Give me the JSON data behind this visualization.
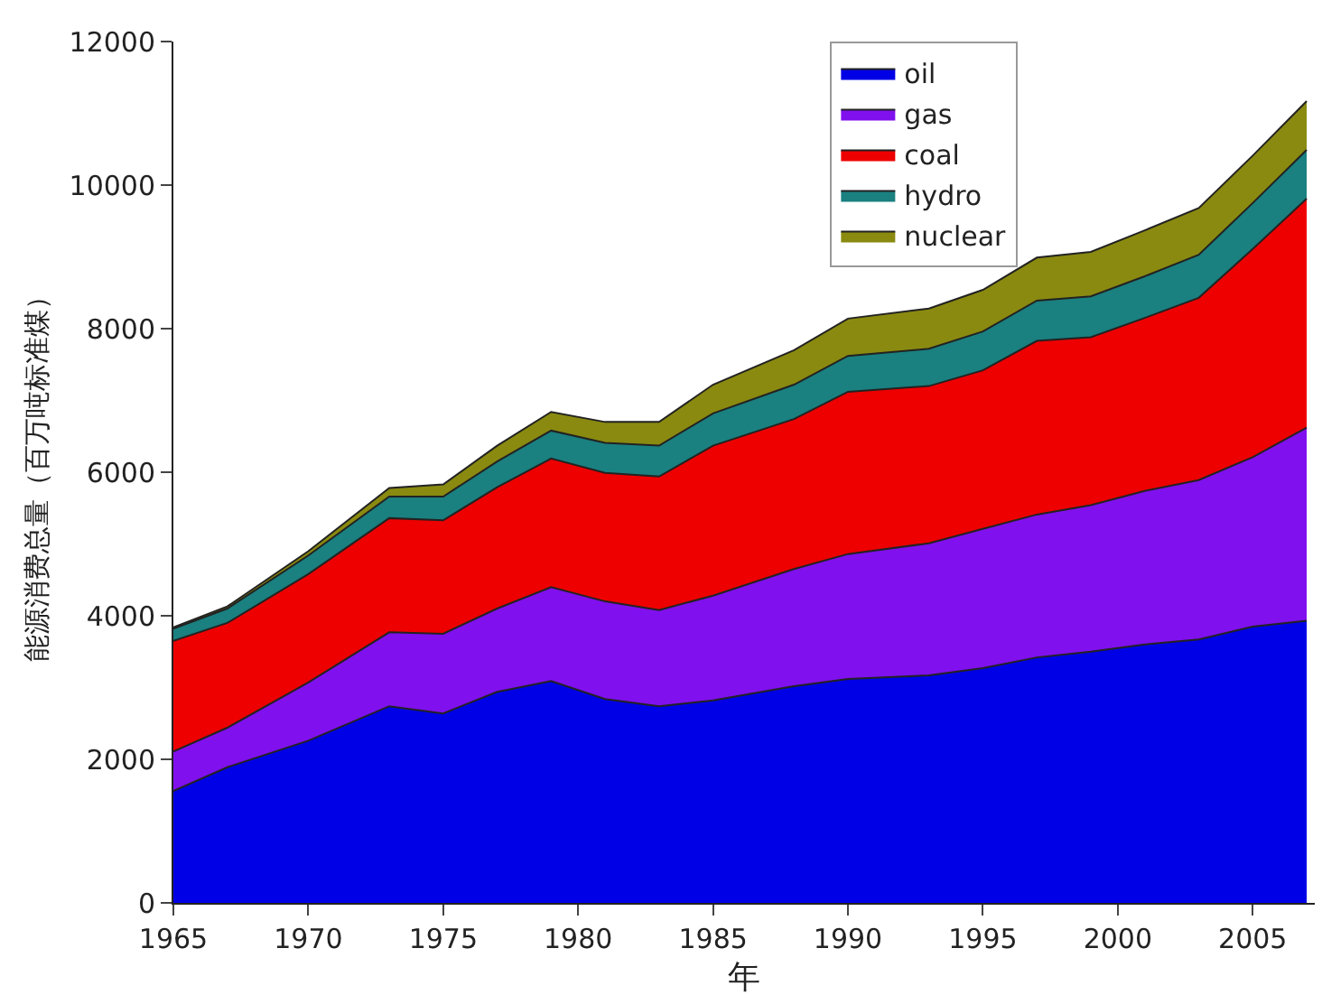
{
  "chart_data": {
    "type": "area",
    "stacked": true,
    "xlabel": "年",
    "ylabel": "能源消费总量（百万吨标准煤）",
    "x": [
      1965,
      1967,
      1970,
      1973,
      1975,
      1977,
      1979,
      1981,
      1983,
      1985,
      1988,
      1990,
      1993,
      1995,
      1997,
      1999,
      2001,
      2003,
      2005,
      2007
    ],
    "xlim": [
      1965,
      2007.3
    ],
    "xticks": [
      1965,
      1970,
      1975,
      1980,
      1985,
      1990,
      1995,
      2000,
      2005
    ],
    "ylim": [
      0,
      12000
    ],
    "yticks": [
      0,
      2000,
      4000,
      6000,
      8000,
      10000,
      12000
    ],
    "grid": false,
    "legend": "top right",
    "series": [
      {
        "name": "oil",
        "color": "#0000e6",
        "values": [
          1560,
          1890,
          2260,
          2740,
          2640,
          2940,
          3090,
          2840,
          2740,
          2820,
          3020,
          3120,
          3170,
          3270,
          3420,
          3500,
          3600,
          3670,
          3850,
          3930
        ]
      },
      {
        "name": "gas",
        "color": "#8010ee",
        "values": [
          550,
          550,
          810,
          1030,
          1110,
          1160,
          1310,
          1360,
          1340,
          1460,
          1630,
          1740,
          1840,
          1940,
          1990,
          2040,
          2140,
          2220,
          2360,
          2690
        ]
      },
      {
        "name": "coal",
        "color": "#ee0000",
        "values": [
          1540,
          1460,
          1510,
          1590,
          1580,
          1690,
          1790,
          1790,
          1860,
          2090,
          2090,
          2260,
          2190,
          2210,
          2420,
          2340,
          2410,
          2540,
          2900,
          3190
        ]
      },
      {
        "name": "hydro",
        "color": "#1a8080",
        "values": [
          170,
          200,
          260,
          300,
          330,
          360,
          390,
          420,
          430,
          450,
          480,
          500,
          520,
          540,
          560,
          570,
          580,
          600,
          640,
          680
        ]
      },
      {
        "name": "nuclear",
        "color": "#8a8a10",
        "values": [
          20,
          30,
          60,
          120,
          170,
          220,
          260,
          290,
          330,
          400,
          480,
          520,
          560,
          580,
          600,
          620,
          640,
          650,
          660,
          680
        ]
      }
    ]
  }
}
